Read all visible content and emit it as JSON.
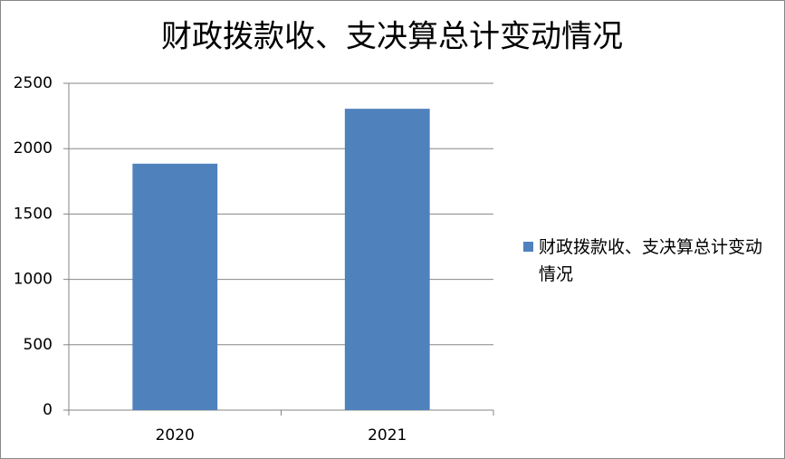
{
  "chart_data": {
    "type": "bar",
    "title": "财政拨款收、支决算总计变动情况",
    "categories": [
      "2020",
      "2021"
    ],
    "series": [
      {
        "name": "财政拨款收、支决算总计变动情况",
        "color": "#4f81bd",
        "values": [
          1885,
          2305
        ]
      }
    ],
    "ylim": [
      0,
      2500
    ],
    "yticks": [
      0,
      500,
      1000,
      1500,
      2000,
      2500
    ],
    "grid": true,
    "legend": "right"
  }
}
